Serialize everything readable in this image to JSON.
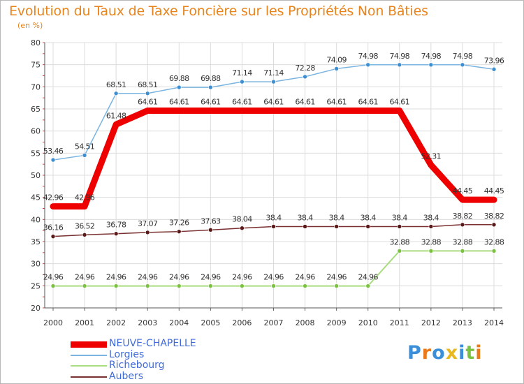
{
  "header": {
    "title": "Evolution du Taux de Taxe Foncière sur les Propriétés Non Bâties",
    "unit": "(en %)"
  },
  "logo": {
    "text": "Proxiti",
    "letters": [
      {
        "ch": "P",
        "color": "#3a8fd8"
      },
      {
        "ch": "r",
        "color": "#e87a1c"
      },
      {
        "ch": "o",
        "color": "#3a8fd8"
      },
      {
        "ch": "x",
        "color": "#e8b81c"
      },
      {
        "ch": "i",
        "color": "#3a8fd8"
      },
      {
        "ch": "t",
        "color": "#7cc242"
      },
      {
        "ch": "i",
        "color": "#e87a1c"
      }
    ]
  },
  "chart_data": {
    "type": "line",
    "title": "Evolution du Taux de Taxe Foncière sur les Propriétés Non Bâties",
    "ylabel": "(en %)",
    "xlabel": "",
    "ylim": [
      20,
      80
    ],
    "yticks": [
      20,
      25,
      30,
      35,
      40,
      45,
      50,
      55,
      60,
      65,
      70,
      75,
      80
    ],
    "grid": true,
    "legend_position": "bottom-left",
    "x": [
      "2000",
      "2001",
      "2002",
      "2003",
      "2004",
      "2005",
      "2006",
      "2007",
      "2008",
      "2009",
      "2010",
      "2011",
      "2012",
      "2013",
      "2014"
    ],
    "series": [
      {
        "name": "Lorgies",
        "color": "#7ab4e0",
        "marker": "#3f8fd0",
        "width": 1.5,
        "values": [
          53.46,
          54.51,
          68.51,
          68.51,
          69.88,
          69.88,
          71.14,
          71.14,
          72.28,
          74.09,
          74.98,
          74.98,
          74.98,
          74.98,
          73.96
        ],
        "labels": [
          "53.46",
          "54.51",
          "68.51",
          "68.51",
          "69.88",
          "69.88",
          "71.14",
          "71.14",
          "72.28",
          "74.09",
          "74.98",
          "74.98",
          "74.98",
          "74.98",
          "73.96"
        ]
      },
      {
        "name": "NEUVE-CHAPELLE",
        "color": "#ee0000",
        "marker": "#ee0000",
        "width": 9,
        "values": [
          42.96,
          42.96,
          61.48,
          64.61,
          64.61,
          64.61,
          64.61,
          64.61,
          64.61,
          64.61,
          64.61,
          64.61,
          52.31,
          44.45,
          44.45
        ],
        "labels": [
          "42.96",
          "42.96",
          "61.48",
          "64.61",
          "64.61",
          "64.61",
          "64.61",
          "64.61",
          "64.61",
          "64.61",
          "64.61",
          "64.61",
          "52.31",
          "44.45",
          "44.45"
        ]
      },
      {
        "name": "Aubers",
        "color": "#7a3030",
        "marker": "#5a1a1a",
        "width": 1.5,
        "values": [
          36.16,
          36.52,
          36.78,
          37.07,
          37.26,
          37.63,
          38.04,
          38.4,
          38.4,
          38.4,
          38.4,
          38.4,
          38.4,
          38.82,
          38.82
        ],
        "labels": [
          "36.16",
          "36.52",
          "36.78",
          "37.07",
          "37.26",
          "37.63",
          "38.04",
          "38.4",
          "38.4",
          "38.4",
          "38.4",
          "38.4",
          "38.4",
          "38.82",
          "38.82"
        ]
      },
      {
        "name": "Richebourg",
        "color": "#aadc80",
        "marker": "#7cc242",
        "width": 2,
        "values": [
          24.96,
          24.96,
          24.96,
          24.96,
          24.96,
          24.96,
          24.96,
          24.96,
          24.96,
          24.96,
          24.96,
          32.88,
          32.88,
          32.88,
          32.88
        ],
        "labels": [
          "24.96",
          "24.96",
          "24.96",
          "24.96",
          "24.96",
          "24.96",
          "24.96",
          "24.96",
          "24.96",
          "24.96",
          "24.96",
          "32.88",
          "32.88",
          "32.88",
          "32.88"
        ]
      }
    ],
    "legend": [
      {
        "name": "NEUVE-CHAPELLE",
        "color": "#ee0000",
        "width": 9
      },
      {
        "name": "Lorgies",
        "color": "#7ab4e0",
        "width": 2
      },
      {
        "name": "Richebourg",
        "color": "#aadc80",
        "width": 2
      },
      {
        "name": "Aubers",
        "color": "#7a3030",
        "width": 2
      }
    ]
  }
}
